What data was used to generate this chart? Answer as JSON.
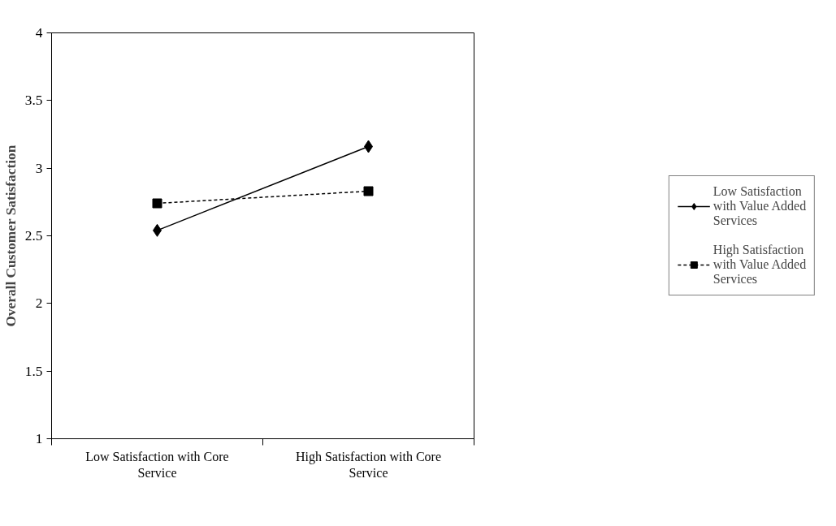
{
  "chart_data": {
    "type": "line",
    "ylabel": "Overall Customer Satisfaction",
    "categories": [
      "Low Satisfaction with Core Service",
      "High Satisfaction with Core Service"
    ],
    "series": [
      {
        "name": "Low Satisfaction with Value Added Services",
        "color": "#000000",
        "values": [
          2.54,
          3.16
        ],
        "marker": "diamond",
        "line_style": "solid"
      },
      {
        "name": "High Satisfaction with Value Added Services",
        "color": "#000000",
        "values": [
          2.74,
          2.83
        ],
        "marker": "square",
        "line_style": "dashed"
      }
    ],
    "ylim": [
      1,
      4
    ],
    "yticks": [
      1,
      1.5,
      2,
      2.5,
      3,
      3.5,
      4
    ],
    "grid": false,
    "legend": "right"
  }
}
